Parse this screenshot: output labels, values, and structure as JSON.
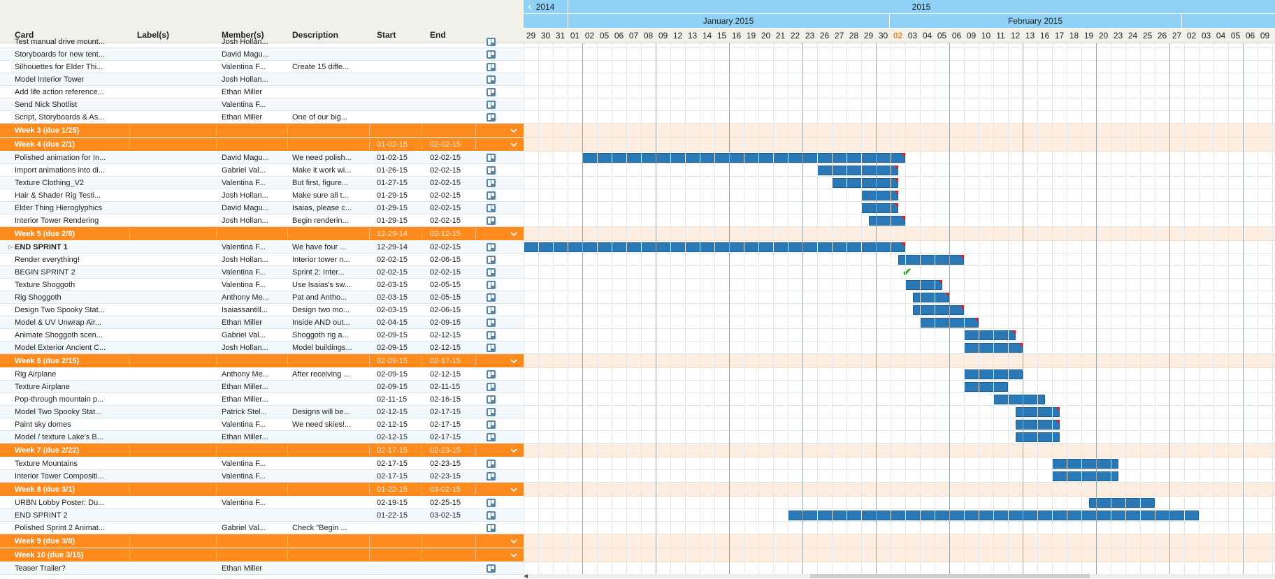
{
  "columns": {
    "card": "Card",
    "labels": "Label(s)",
    "members": "Member(s)",
    "description": "Description",
    "start": "Start",
    "end": "End"
  },
  "timeline": {
    "years": [
      {
        "label": "2014"
      },
      {
        "label": "2015"
      }
    ],
    "months": [
      {
        "label": "January 2015"
      },
      {
        "label": "February 2015"
      }
    ],
    "days": [
      "29",
      "30",
      "31",
      "01",
      "02",
      "05",
      "06",
      "07",
      "08",
      "09",
      "12",
      "13",
      "14",
      "15",
      "16",
      "19",
      "20",
      "21",
      "22",
      "23",
      "26",
      "27",
      "28",
      "29",
      "30",
      "02",
      "03",
      "04",
      "05",
      "06",
      "09",
      "10",
      "11",
      "12",
      "13",
      "16",
      "17",
      "18",
      "19",
      "20",
      "23",
      "24",
      "25",
      "26",
      "27",
      "02",
      "03",
      "04",
      "05",
      "06",
      "09"
    ],
    "today": "02"
  },
  "rows": [
    {
      "type": "task",
      "card": "Test manual drive mount...",
      "members": "Josh Hollan...",
      "desc": "",
      "start": "",
      "end": "",
      "partial": true
    },
    {
      "type": "task",
      "card": "Storyboards for new tent...",
      "members": "David Magu...",
      "desc": "",
      "start": "",
      "end": ""
    },
    {
      "type": "task",
      "card": "Silhouettes for Elder Thi...",
      "members": "Valentina F...",
      "desc": "Create 15 diffe...",
      "start": "",
      "end": ""
    },
    {
      "type": "task",
      "card": "Model Interior Tower",
      "members": "Josh Hollan...",
      "desc": "",
      "start": "",
      "end": ""
    },
    {
      "type": "task",
      "card": "Add life action reference...",
      "members": "Ethan Miller",
      "desc": "",
      "start": "",
      "end": ""
    },
    {
      "type": "task",
      "card": "Send Nick Shotlist",
      "members": "Valentina F...",
      "desc": "",
      "start": "",
      "end": ""
    },
    {
      "type": "task",
      "card": "Script, Storyboards & As...",
      "members": "Ethan Miller",
      "desc": "One of our big...",
      "start": "",
      "end": ""
    },
    {
      "type": "group",
      "card": "Week 3 (due 1/25)",
      "start": "",
      "end": ""
    },
    {
      "type": "group",
      "card": "Week 4 (due 2/1)",
      "start": "01-02-15",
      "end": "02-02-15"
    },
    {
      "type": "task",
      "card": "Polished animation for In...",
      "members": "David Magu...",
      "desc": "We need polish...",
      "start": "01-02-15",
      "end": "02-02-15",
      "bar": [
        4,
        26
      ],
      "flag": true
    },
    {
      "type": "task",
      "card": "Import animations into di...",
      "members": "Gabriel Val...",
      "desc": "Make it work wi...",
      "start": "01-26-15",
      "end": "02-02-15",
      "bar": [
        20,
        25.5
      ],
      "flag": true
    },
    {
      "type": "task",
      "card": "Texture Clothing_V2",
      "members": "Valentina F...",
      "desc": "But first, figure...",
      "start": "01-27-15",
      "end": "02-02-15",
      "bar": [
        21,
        25.5
      ],
      "flag": true
    },
    {
      "type": "task",
      "card": "Hair & Shader Rig Testi...",
      "members": "Josh Hollan...",
      "desc": "Make sure all t...",
      "start": "01-29-15",
      "end": "02-02-15",
      "bar": [
        23,
        25.5
      ],
      "flag": true
    },
    {
      "type": "task",
      "card": "Elder Thing Hieroglyphics",
      "members": "David Magu...",
      "desc": "Isaias, please c...",
      "start": "01-29-15",
      "end": "02-02-15",
      "bar": [
        23,
        25.5
      ],
      "flag": true
    },
    {
      "type": "task",
      "card": "Interior Tower Rendering",
      "members": "Josh Hollan...",
      "desc": "Begin renderin...",
      "start": "01-29-15",
      "end": "02-02-15",
      "bar": [
        23.5,
        26
      ],
      "flag": true
    },
    {
      "type": "group",
      "card": "Week 5 (due 2/8)",
      "start": "12-29-14",
      "end": "02-12-15"
    },
    {
      "type": "task",
      "card": "END SPRINT 1",
      "members": "Valentina F...",
      "desc": "We have four ...",
      "start": "12-29-14",
      "end": "02-02-15",
      "bar": [
        0,
        26
      ],
      "flag": true,
      "bold": true,
      "expander": true
    },
    {
      "type": "task",
      "card": "Render everything!",
      "members": "Josh Hollan...",
      "desc": "Interior tower n...",
      "start": "02-02-15",
      "end": "02-06-15",
      "bar": [
        25.5,
        30
      ],
      "flag": true
    },
    {
      "type": "task",
      "card": "BEGIN SPRINT 2",
      "members": "Valentina F...",
      "desc": "Sprint 2:  Inter...",
      "start": "02-02-15",
      "end": "02-02-15",
      "check": 26
    },
    {
      "type": "task",
      "card": "Texture Shoggoth",
      "members": "Valentina F...",
      "desc": "Use Isaias's sw...",
      "start": "02-03-15",
      "end": "02-05-15",
      "bar": [
        26,
        28.5
      ],
      "flag": true
    },
    {
      "type": "task",
      "card": "Rig Shoggoth",
      "members": "Anthony Me...",
      "desc": "Pat and Antho...",
      "start": "02-03-15",
      "end": "02-05-15",
      "bar": [
        26.5,
        29
      ],
      "flag": true
    },
    {
      "type": "task",
      "card": "Design Two Spooky Stat...",
      "members": "Isaiassantill...",
      "desc": "Design two mo...",
      "start": "02-03-15",
      "end": "02-06-15",
      "bar": [
        26.5,
        30
      ],
      "flag": true
    },
    {
      "type": "task",
      "card": "Model & UV Unwrap Air...",
      "members": "Ethan Miller",
      "desc": "Inside AND out...",
      "start": "02-04-15",
      "end": "02-09-15",
      "bar": [
        27,
        31
      ],
      "flag": true
    },
    {
      "type": "task",
      "card": "Animate Shoggoth scen...",
      "members": "Gabriel Val...",
      "desc": "Shoggoth rig a...",
      "start": "02-09-15",
      "end": "02-12-15",
      "bar": [
        30,
        33.5
      ],
      "flag": true
    },
    {
      "type": "task",
      "card": "Model Exterior Ancient C...",
      "members": "Josh Hollan...",
      "desc": "Model buildings...",
      "start": "02-09-15",
      "end": "02-12-15",
      "bar": [
        30,
        34
      ],
      "flag": true
    },
    {
      "type": "group",
      "card": "Week 6 (due 2/15)",
      "start": "02-09-15",
      "end": "02-17-15"
    },
    {
      "type": "task",
      "card": "Rig Airplane",
      "members": "Anthony Me...",
      "desc": "After receiving ...",
      "start": "02-09-15",
      "end": "02-12-15",
      "bar": [
        30,
        34
      ],
      "flag": false
    },
    {
      "type": "task",
      "card": "Texture Airplane",
      "members": "Ethan Miller...",
      "desc": "",
      "start": "02-09-15",
      "end": "02-11-15",
      "bar": [
        30,
        33
      ],
      "flag": false
    },
    {
      "type": "task",
      "card": "Pop-through mountain p...",
      "members": "Ethan Miller...",
      "desc": "",
      "start": "02-11-15",
      "end": "02-16-15",
      "bar": [
        32,
        35.5
      ],
      "flag": false
    },
    {
      "type": "task",
      "card": "Model Two Spooky Stat...",
      "members": "Patrick Stel...",
      "desc": "Designs will be...",
      "start": "02-12-15",
      "end": "02-17-15",
      "bar": [
        33.5,
        36.5
      ],
      "flag": true
    },
    {
      "type": "task",
      "card": "Paint sky domes",
      "members": "Valentina F...",
      "desc": "We need skies!...",
      "start": "02-12-15",
      "end": "02-17-15",
      "bar": [
        33.5,
        36.5
      ],
      "flag": true
    },
    {
      "type": "task",
      "card": "Model / texture Lake's B...",
      "members": "Ethan Miller...",
      "desc": "",
      "start": "02-12-15",
      "end": "02-17-15",
      "bar": [
        33.5,
        36.5
      ],
      "flag": false
    },
    {
      "type": "group",
      "card": "Week 7 (due 2/22)",
      "start": "02-17-15",
      "end": "02-23-15"
    },
    {
      "type": "task",
      "card": "Texture Mountains",
      "members": "Valentina F...",
      "desc": "",
      "start": "02-17-15",
      "end": "02-23-15",
      "bar": [
        36,
        40.5
      ],
      "flag": false
    },
    {
      "type": "task",
      "card": "Interior Tower Compositi...",
      "members": "Valentina F...",
      "desc": "",
      "start": "02-17-15",
      "end": "02-23-15",
      "bar": [
        36,
        40.5
      ],
      "flag": false
    },
    {
      "type": "group",
      "card": "Week 8 (due 3/1)",
      "start": "01-22-15",
      "end": "03-02-15"
    },
    {
      "type": "task",
      "card": "URBN Lobby Poster: Du...",
      "members": "Valentina F...",
      "desc": "",
      "start": "02-19-15",
      "end": "02-25-15",
      "bar": [
        38.5,
        43
      ],
      "flag": false
    },
    {
      "type": "task",
      "card": "END SPRINT 2",
      "members": "",
      "desc": "",
      "start": "01-22-15",
      "end": "03-02-15",
      "bar": [
        18,
        46
      ],
      "flag": false
    },
    {
      "type": "task",
      "card": "Polished Sprint 2 Animat...",
      "members": "Gabriel Val...",
      "desc": "Check \"Begin ...",
      "start": "",
      "end": ""
    },
    {
      "type": "group",
      "card": "Week 9 (due 3/8)",
      "start": "",
      "end": ""
    },
    {
      "type": "group",
      "card": "Week 10 (due 3/15)",
      "start": "",
      "end": ""
    },
    {
      "type": "task",
      "card": "Teaser Trailer?",
      "members": "Ethan Miller",
      "desc": "",
      "start": "",
      "end": ""
    }
  ]
}
